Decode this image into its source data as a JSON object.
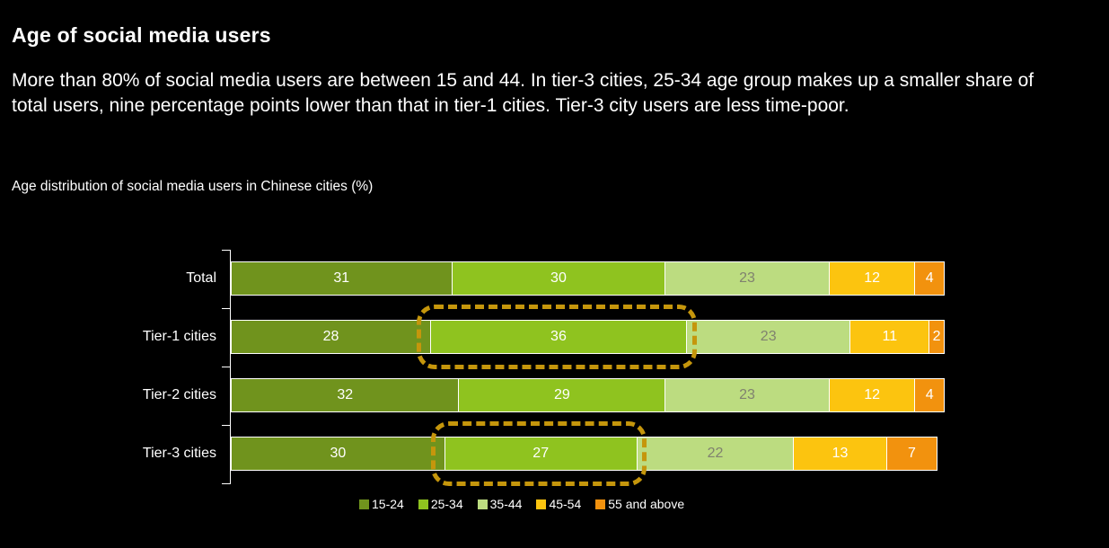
{
  "page": {
    "title": "Age of social media users",
    "summary": "More than 80% of social media users are between 15 and 44. In tier-3 cities, 25-34 age group makes up a smaller share of total users, nine percentage points lower than that in tier-1 cities. Tier-3 city users are less time-poor.",
    "chart_caption": "Age distribution of social media users in Chinese cities (%)"
  },
  "colors": {
    "background": "#000000",
    "text": "#ffffff",
    "axis": "#ffffff",
    "highlight_dash": "#c5960c"
  },
  "chart_data": {
    "type": "bar",
    "orientation": "horizontal",
    "stacked": true,
    "unit": "%",
    "x_max": 100,
    "grid": false,
    "legend_position": "bottom",
    "categories": [
      "Total",
      "Tier-1 cities",
      "Tier-2 cities",
      "Tier-3 cities"
    ],
    "series": [
      {
        "name": "15-24",
        "color": "#70931d",
        "label_color": "#ffffff",
        "values": [
          31,
          28,
          32,
          30
        ]
      },
      {
        "name": "25-34",
        "color": "#8fc31f",
        "label_color": "#ffffff",
        "values": [
          30,
          36,
          29,
          27
        ]
      },
      {
        "name": "35-44",
        "color": "#bcdc80",
        "label_color": "#80826f",
        "values": [
          23,
          23,
          23,
          22
        ]
      },
      {
        "name": "45-54",
        "color": "#fcc40f",
        "label_color": "#ffffff",
        "values": [
          12,
          11,
          12,
          13
        ]
      },
      {
        "name": "55 and above",
        "color": "#f2920e",
        "label_color": "#ffffff",
        "values": [
          4,
          2,
          4,
          7
        ]
      }
    ],
    "highlights": [
      {
        "category": "Tier-1 cities",
        "series": "25-34",
        "value": 36,
        "color": "#c5960c"
      },
      {
        "category": "Tier-3 cities",
        "series": "25-34",
        "value": 27,
        "color": "#c5960c"
      }
    ]
  }
}
